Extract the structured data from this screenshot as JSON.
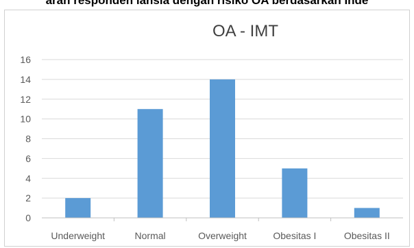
{
  "page": {
    "caption": "aran responden lansia dengan risiko OA berdasarkan Inde"
  },
  "chart_data": {
    "type": "bar",
    "title": "OA - IMT",
    "categories": [
      "Underweight",
      "Normal",
      "Overweight",
      "Obesitas I",
      "Obesitas II"
    ],
    "values": [
      2,
      11,
      14,
      5,
      1
    ],
    "ylim": [
      0,
      16
    ],
    "yticks": [
      "0",
      "2",
      "4",
      "6",
      "8",
      "10",
      "12",
      "14",
      "16"
    ],
    "grid": true,
    "legend": "none",
    "colors": {
      "bar": "#5b9bd5",
      "grid": "#d9d9d9",
      "axis": "#bfbfbf",
      "text": "#595959",
      "title": "#404040"
    }
  }
}
